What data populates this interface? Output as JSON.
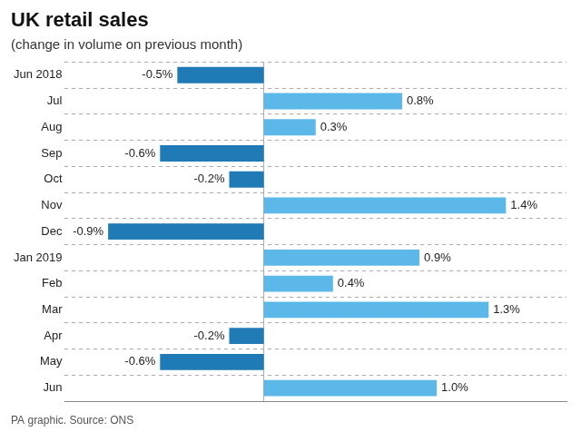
{
  "chart_data": {
    "type": "bar",
    "orientation": "horizontal",
    "title": "UK retail sales",
    "subtitle": "(change in volume on previous month)",
    "source": "PA graphic. Source: ONS",
    "categories": [
      "Jun 2018",
      "Jul",
      "Aug",
      "Sep",
      "Oct",
      "Nov",
      "Dec",
      "Jan 2019",
      "Feb",
      "Mar",
      "Apr",
      "May",
      "Jun"
    ],
    "values": [
      -0.5,
      0.8,
      0.3,
      -0.6,
      -0.2,
      1.4,
      -0.9,
      0.9,
      0.4,
      1.3,
      -0.2,
      -0.6,
      1.0
    ],
    "value_labels": [
      "-0.5%",
      "0.8%",
      "0.3%",
      "-0.6%",
      "-0.2%",
      "1.4%",
      "-0.9%",
      "0.9%",
      "0.4%",
      "1.3%",
      "-0.2%",
      "-0.6%",
      "1.0%"
    ],
    "colors": [
      "#1f7ab5",
      "#5bb8e8",
      "#5bb8e8",
      "#1f7ab5",
      "#1f7ab5",
      "#5bb8e8",
      "#1f7ab5",
      "#5bb8e8",
      "#5bb8e8",
      "#5bb8e8",
      "#1f7ab5",
      "#1f7ab5",
      "#5bb8e8"
    ],
    "xlim": [
      -1.15,
      1.75
    ],
    "data_labels": true,
    "tick_labels": "y",
    "grid": true
  }
}
